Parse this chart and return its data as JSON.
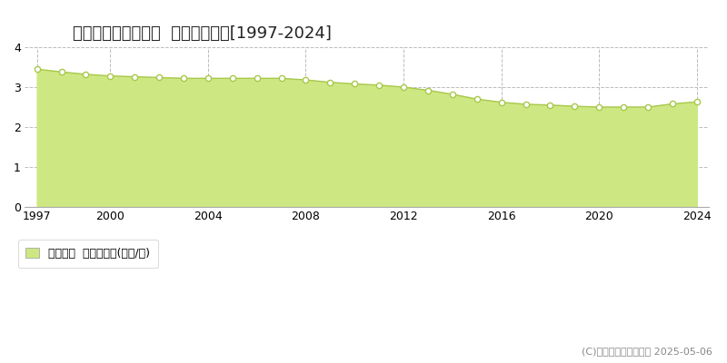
{
  "title": "南巨摩郡身延町下山  基準地価推移[1997-2024]",
  "years": [
    1997,
    1998,
    1999,
    2000,
    2001,
    2002,
    2003,
    2004,
    2005,
    2006,
    2007,
    2008,
    2009,
    2010,
    2011,
    2012,
    2013,
    2014,
    2015,
    2016,
    2017,
    2018,
    2019,
    2020,
    2021,
    2022,
    2023,
    2024
  ],
  "values": [
    3.45,
    3.38,
    3.32,
    3.28,
    3.26,
    3.24,
    3.22,
    3.22,
    3.22,
    3.22,
    3.22,
    3.18,
    3.12,
    3.08,
    3.05,
    3.0,
    2.92,
    2.82,
    2.7,
    2.62,
    2.57,
    2.55,
    2.52,
    2.5,
    2.5,
    2.5,
    2.58,
    2.63
  ],
  "ylim": [
    0,
    4
  ],
  "yticks": [
    0,
    1,
    2,
    3,
    4
  ],
  "xticks": [
    1997,
    2000,
    2004,
    2008,
    2012,
    2016,
    2020,
    2024
  ],
  "line_color": "#a8c84a",
  "fill_color": "#cde882",
  "marker_facecolor": "#ffffff",
  "marker_edgecolor": "#a8c84a",
  "grid_color": "#bbbbbb",
  "background_color": "#ffffff",
  "legend_label": "基準地価  平均坪単価(万円/坪)",
  "legend_square_color": "#cde882",
  "copyright_text": "(C)土地価格ドットコム 2025-05-06",
  "title_fontsize": 13,
  "tick_fontsize": 9,
  "legend_fontsize": 9,
  "copyright_fontsize": 8
}
